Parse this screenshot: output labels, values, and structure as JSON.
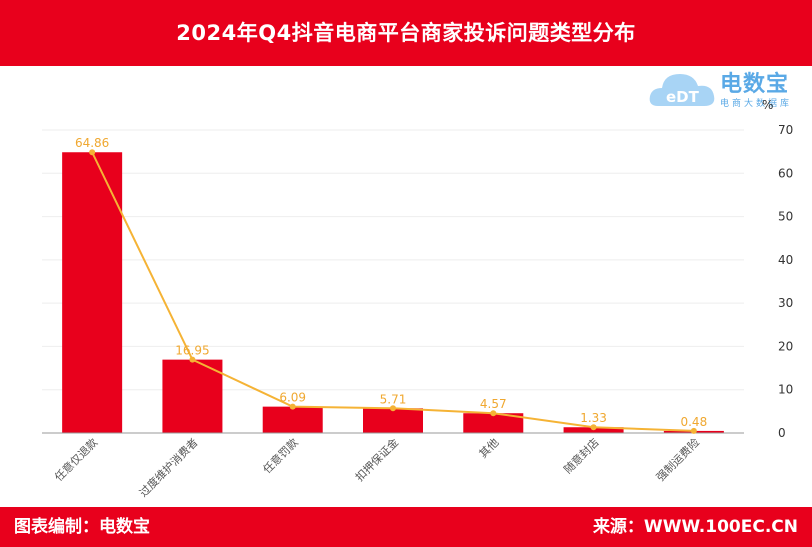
{
  "title": "2024年Q4抖音电商平台商家投诉问题类型分布",
  "footer": {
    "left": "图表编制：电数宝",
    "right": "来源：WWW.100EC.CN"
  },
  "logo": {
    "main": "电数宝",
    "sub": "电商大数据库",
    "icon": "cloud-edt-logo-icon",
    "icon_text": "eDT"
  },
  "colors": {
    "header": "#e8001c",
    "bar": "#e8001c",
    "line": "#f5b335",
    "label": "#f0a830",
    "grid": "#eeeeee",
    "axis": "#999999"
  },
  "chart_data": {
    "type": "bar",
    "categories": [
      "任意仅退款",
      "过度维护消费者",
      "任意罚款",
      "扣押保证金",
      "其他",
      "随意封店",
      "强制运费险"
    ],
    "values": [
      64.86,
      16.95,
      6.09,
      5.71,
      4.57,
      1.33,
      0.48
    ],
    "data_labels": [
      "64.86",
      "16.95",
      "6.09",
      "5.71",
      "4.57",
      "1.33",
      "0.48"
    ],
    "overlay": "line",
    "ylim": [
      0,
      70
    ],
    "yticks": [
      0,
      10,
      20,
      30,
      40,
      50,
      60,
      70
    ],
    "ylabel_unit": "%",
    "y_axis_position": "right",
    "grid": true
  }
}
